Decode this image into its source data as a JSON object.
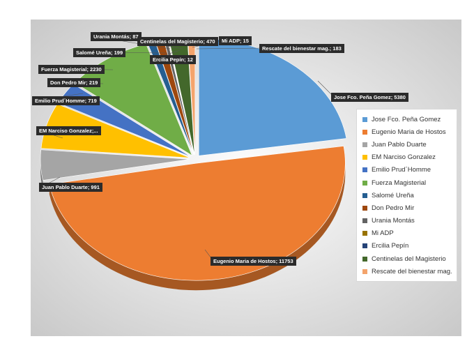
{
  "chart_data": {
    "type": "pie",
    "title": "",
    "legend_position": "right",
    "categories": [
      "Jose Fco. Peña Gomez",
      "Eugenio Maria de Hostos",
      "Juan Pablo Duarte",
      "EM Narciso Gonzalez",
      "Emilio Prud´Homme",
      "Fuerza Magisterial",
      "Salomé Ureña",
      "Don Pedro Mir",
      "Urania Montás",
      "Mi ADP",
      "Ercilia Pepín",
      "Centinelas del Magisterio",
      "Rescate del bienestar mag."
    ],
    "values": [
      5380,
      11753,
      991,
      1500,
      719,
      2230,
      199,
      219,
      87,
      15,
      12,
      470,
      183
    ],
    "colors": [
      "#5b9bd5",
      "#ed7d31",
      "#a5a5a5",
      "#ffc000",
      "#4472c4",
      "#70ad47",
      "#255e91",
      "#9e480e",
      "#636363",
      "#997300",
      "#264478",
      "#43682b",
      "#f4a46c"
    ],
    "data_labels": [
      "Jose Fco. Peña Gomez; 5380",
      "Eugenio Maria de Hostos; 11753",
      "Juan Pablo Duarte; 991",
      "EM Narciso Gonzalez;...",
      "Emilio Prud´Homme; 719",
      "Fuerza Magisterial; 2230",
      "Salomé Ureña; 199",
      "Don Pedro Mir; 219",
      "Urania Montás; 87",
      "Mi ADP; 15",
      "Ercilia Pepín; 12",
      "Centinelas del Magisterio; 470",
      "Rescate del bienestar mag.; 183"
    ]
  }
}
